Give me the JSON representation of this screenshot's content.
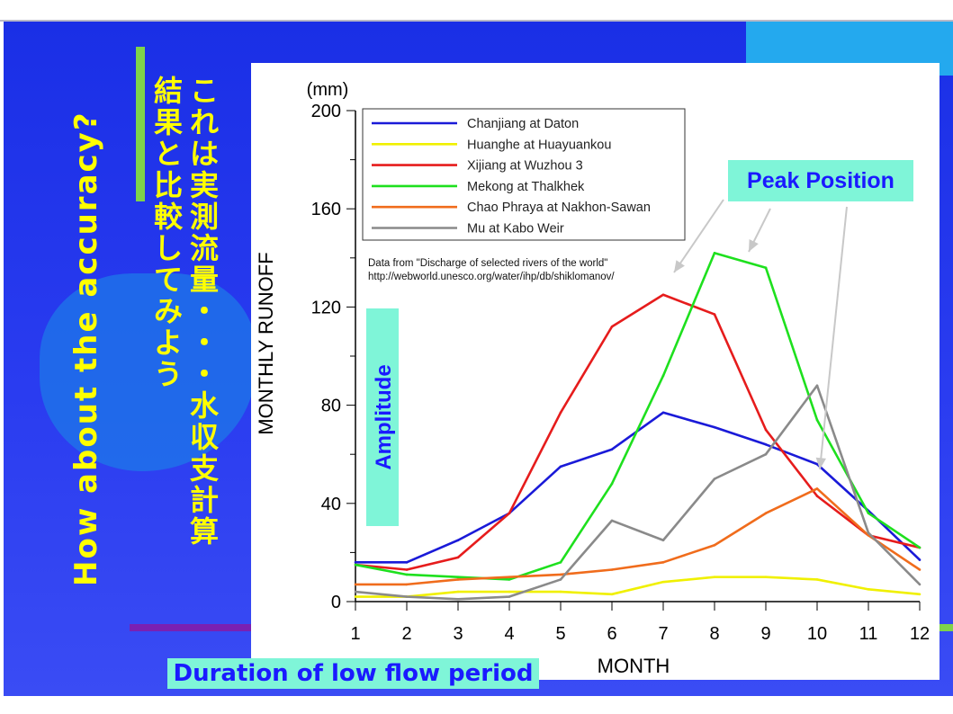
{
  "slide": {
    "vertical_title": "How about the accuracy?",
    "jp_col_1": [
      "こ",
      "れ",
      "は",
      "実",
      "測",
      "流",
      "量",
      "・",
      "・",
      "・",
      "水",
      "収",
      "支",
      "計",
      "算"
    ],
    "jp_col_2": [
      "結",
      "果",
      "と",
      "比",
      "較",
      "し",
      "て",
      "み",
      "よ",
      "う"
    ],
    "duration_label": "Duration of low flow period",
    "colors": {
      "background": "#1a2fe6",
      "highlight_text": "#ffff00",
      "annotation_box": "#7ff5d8",
      "annotation_text": "#1a1aff"
    }
  },
  "chart_data": {
    "type": "line",
    "xlabel": "MONTH",
    "ylabel": "MONTHLY RUNOFF",
    "yunit": "(mm)",
    "x": [
      1,
      2,
      3,
      4,
      5,
      6,
      7,
      8,
      9,
      10,
      11,
      12
    ],
    "xlim": [
      1,
      12
    ],
    "ylim": [
      0,
      200
    ],
    "yticks": [
      0,
      40,
      80,
      120,
      160,
      200
    ],
    "legend_position": "top-left",
    "series": [
      {
        "name": "Chanjiang at Daton",
        "color": "#1a1ad8",
        "values": [
          16,
          16,
          25,
          36,
          55,
          62,
          77,
          71,
          64,
          56,
          37,
          17
        ]
      },
      {
        "name": "Huanghe at Huayuankou",
        "color": "#f0f000",
        "values": [
          2,
          2,
          4,
          4,
          4,
          3,
          8,
          10,
          10,
          9,
          5,
          3
        ]
      },
      {
        "name": "Xijiang at Wuzhou 3",
        "color": "#e61c1c",
        "values": [
          15,
          13,
          18,
          36,
          77,
          112,
          125,
          117,
          70,
          43,
          27,
          22
        ]
      },
      {
        "name": "Mekong at Thalkhek",
        "color": "#1ee01e",
        "values": [
          15,
          11,
          10,
          9,
          16,
          48,
          92,
          142,
          136,
          74,
          36,
          22
        ]
      },
      {
        "name": "Chao Phraya at Nakhon-Sawan",
        "color": "#f06c1c",
        "values": [
          7,
          7,
          9,
          10,
          11,
          13,
          16,
          23,
          36,
          46,
          27,
          13
        ]
      },
      {
        "name": "Mu at Kabo Weir",
        "color": "#8a8a8a",
        "values": [
          4,
          2,
          1,
          2,
          9,
          33,
          25,
          50,
          60,
          88,
          28,
          7
        ]
      }
    ],
    "source_note": [
      "Data from \"Discharge of selected rivers of the world\"",
      "http://webworld.unesco.org/water/ihp/db/shiklomanov/"
    ],
    "annotations": {
      "peak_position": "Peak Position",
      "amplitude": "Amplitude"
    }
  }
}
